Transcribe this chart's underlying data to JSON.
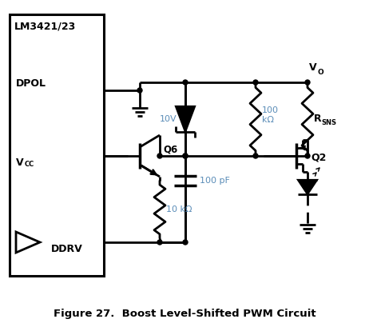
{
  "title": "Figure 27.  Boost Level-Shifted PWM Circuit",
  "bg_color": "#ffffff",
  "line_color": "#000000",
  "blue_color": "#5b8db8",
  "ic_label": "LM3421/23",
  "dpol_label": "DPOL",
  "ddrv_label": "DDRV",
  "q2_label": "Q2",
  "q6_label": "Q6",
  "cap_label": "100 pF",
  "res100k_label": "100\nkΩ",
  "res10k_label": "10 kΩ",
  "zener_label": "10V",
  "rsns_label": "R",
  "rsns_sub": "SNS",
  "vo_label": "V",
  "vo_sub": "O"
}
